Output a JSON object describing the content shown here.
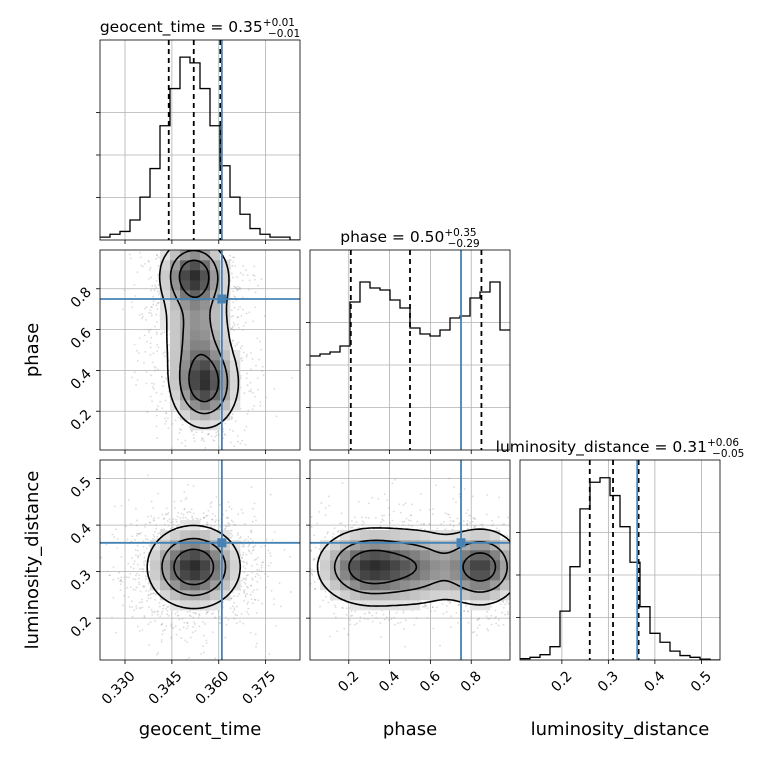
{
  "figure": {
    "type": "corner-plot",
    "colors": {
      "truth": "#4682b4",
      "hist": "#000000",
      "grid": "#b0b0b0",
      "samples": "#999999"
    }
  },
  "chart_data": {
    "type": "heatmap",
    "parameters": [
      "geocent_time",
      "phase",
      "luminosity_distance"
    ],
    "axes": {
      "geocent_time": {
        "range": [
          0.322,
          0.386
        ],
        "ticks": [
          "0.330",
          "0.345",
          "0.360",
          "0.375"
        ],
        "tick_values": [
          0.33,
          0.345,
          0.36,
          0.375
        ]
      },
      "phase": {
        "range": [
          0.01,
          0.99
        ],
        "ticks": [
          "0.2",
          "0.4",
          "0.6",
          "0.8"
        ],
        "tick_values": [
          0.2,
          0.4,
          0.6,
          0.8
        ]
      },
      "luminosity_distance": {
        "range": [
          0.11,
          0.54
        ],
        "ticks": [
          "0.2",
          "0.3",
          "0.4",
          "0.5"
        ],
        "tick_values": [
          0.2,
          0.3,
          0.4,
          0.5
        ]
      }
    },
    "truths": {
      "geocent_time": 0.361,
      "phase": 0.75,
      "luminosity_distance": 0.362
    },
    "titles": [
      {
        "param": "geocent_time",
        "prefix": "geocent_time = ",
        "median": "0.35",
        "plus": "+0.01",
        "minus": "−0.01"
      },
      {
        "param": "phase",
        "prefix": "phase = ",
        "median": "0.50",
        "plus": "+0.35",
        "minus": "−0.29"
      },
      {
        "param": "luminosity_distance",
        "prefix": "luminosity_distance = ",
        "median": "0.31",
        "plus": "+0.06",
        "minus": "−0.05"
      }
    ],
    "quantiles": {
      "geocent_time": [
        0.344,
        0.352,
        0.3605
      ],
      "phase": [
        0.21,
        0.5,
        0.85
      ],
      "luminosity_distance": [
        0.26,
        0.31,
        0.365
      ]
    },
    "histograms": {
      "geocent_time": {
        "edges": [
          0.322,
          0.3252,
          0.3284,
          0.3316,
          0.3348,
          0.338,
          0.3412,
          0.3444,
          0.3476,
          0.3508,
          0.354,
          0.3572,
          0.3604,
          0.3636,
          0.3668,
          0.37,
          0.3732,
          0.3764,
          0.3796,
          0.3828,
          0.386
        ],
        "counts": [
          1,
          2,
          3,
          7,
          15,
          25,
          40,
          53,
          64,
          62,
          53,
          40,
          26,
          15,
          9,
          4,
          2,
          1,
          1,
          0
        ],
        "ymax": 70
      },
      "phase": {
        "edges": [
          0.01,
          0.059,
          0.108,
          0.157,
          0.206,
          0.255,
          0.304,
          0.353,
          0.402,
          0.451,
          0.5,
          0.549,
          0.598,
          0.647,
          0.696,
          0.745,
          0.794,
          0.843,
          0.892,
          0.941,
          0.99
        ],
        "counts": [
          0.47,
          0.48,
          0.49,
          0.52,
          0.74,
          0.84,
          0.81,
          0.8,
          0.75,
          0.71,
          0.61,
          0.58,
          0.57,
          0.6,
          0.66,
          0.67,
          0.76,
          0.79,
          0.84,
          0.6
        ],
        "ymax": 1.0
      },
      "luminosity_distance": {
        "edges": [
          0.11,
          0.1315,
          0.153,
          0.1745,
          0.196,
          0.2175,
          0.239,
          0.2605,
          0.282,
          0.3035,
          0.325,
          0.3465,
          0.368,
          0.3895,
          0.411,
          0.4325,
          0.454,
          0.4755,
          0.497,
          0.5185,
          0.54
        ],
        "counts": [
          0.3,
          0.6,
          1.2,
          3,
          11,
          21,
          34,
          40,
          41,
          37,
          30,
          22,
          12,
          6,
          4,
          2,
          1,
          0.6,
          0.2,
          0
        ],
        "ymax": 45
      }
    },
    "densities": [
      {
        "x": "geocent_time",
        "y": "phase",
        "peaks": [
          {
            "x": 0.352,
            "y": 0.87,
            "sx": 0.0055,
            "sy": 0.09,
            "w": 1.0
          },
          {
            "x": 0.3555,
            "y": 0.33,
            "sx": 0.0055,
            "sy": 0.11,
            "w": 1.0
          },
          {
            "x": 0.353,
            "y": 0.6,
            "sx": 0.006,
            "sy": 0.16,
            "w": 0.55
          }
        ]
      },
      {
        "x": "geocent_time",
        "y": "luminosity_distance",
        "peaks": [
          {
            "x": 0.352,
            "y": 0.31,
            "sx": 0.0075,
            "sy": 0.045,
            "w": 1.0
          }
        ]
      },
      {
        "x": "phase",
        "y": "luminosity_distance",
        "peaks": [
          {
            "x": 0.3,
            "y": 0.31,
            "sx": 0.13,
            "sy": 0.042,
            "w": 1.0
          },
          {
            "x": 0.85,
            "y": 0.31,
            "sx": 0.1,
            "sy": 0.042,
            "w": 0.95
          },
          {
            "x": 0.55,
            "y": 0.31,
            "sx": 0.12,
            "sy": 0.045,
            "w": 0.55
          }
        ]
      }
    ],
    "xlabel": [
      "geocent_time",
      "phase",
      "luminosity_distance"
    ],
    "ylabel": [
      "phase",
      "luminosity_distance"
    ],
    "grid": true,
    "legend": "none"
  }
}
